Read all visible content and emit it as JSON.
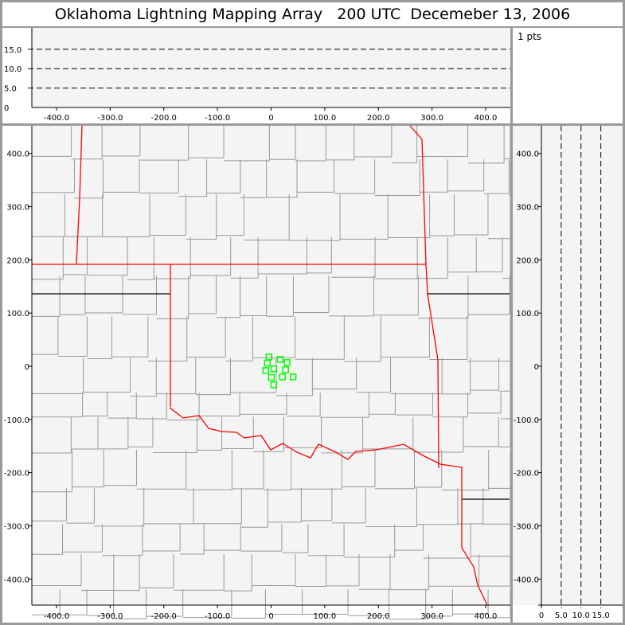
{
  "title": "Oklahoma Lightning Mapping Array   200 UTC  Decemeber 13, 2006",
  "info": {
    "points_label": "1 pts"
  },
  "colors": {
    "background": "#f4f4f4",
    "county_lines": "#999999",
    "state_borders": "#ff0000",
    "points": "#00ff00"
  },
  "top_panel": {
    "x_ticks": [
      "-400.0",
      "-300.0",
      "-200.0",
      "-100.0",
      "0",
      "100.0",
      "200.0",
      "300.0",
      "400.0"
    ],
    "y_ticks": [
      "0",
      "5.0",
      "10.0",
      "15.0"
    ],
    "x_range": [
      -446,
      446
    ],
    "y_range": [
      0,
      20.5
    ]
  },
  "map_panel": {
    "x_ticks": [
      "-400.0",
      "-300.0",
      "-200.0",
      "-100.0",
      "0",
      "100.0",
      "200.0",
      "300.0",
      "400.0"
    ],
    "y_ticks": [
      "-400.0",
      "-300.0",
      "-200.0",
      "-100.0",
      "0",
      "100.0",
      "200.0",
      "300.0",
      "400.0"
    ],
    "x_range": [
      -446,
      446
    ],
    "y_range": [
      -449,
      452
    ]
  },
  "side_panel": {
    "x_ticks": [
      "0",
      "5.0",
      "10.0",
      "15.0"
    ],
    "x_range": [
      0,
      20.5
    ]
  },
  "points": [
    [
      -4,
      17.5
    ],
    [
      17,
      13
    ],
    [
      30,
      7
    ],
    [
      -7,
      6
    ],
    [
      5,
      -5
    ],
    [
      27,
      -6.5
    ],
    [
      -10,
      -8
    ],
    [
      0.5,
      -21
    ],
    [
      21,
      -20
    ],
    [
      41,
      -20
    ],
    [
      5,
      -35
    ]
  ]
}
